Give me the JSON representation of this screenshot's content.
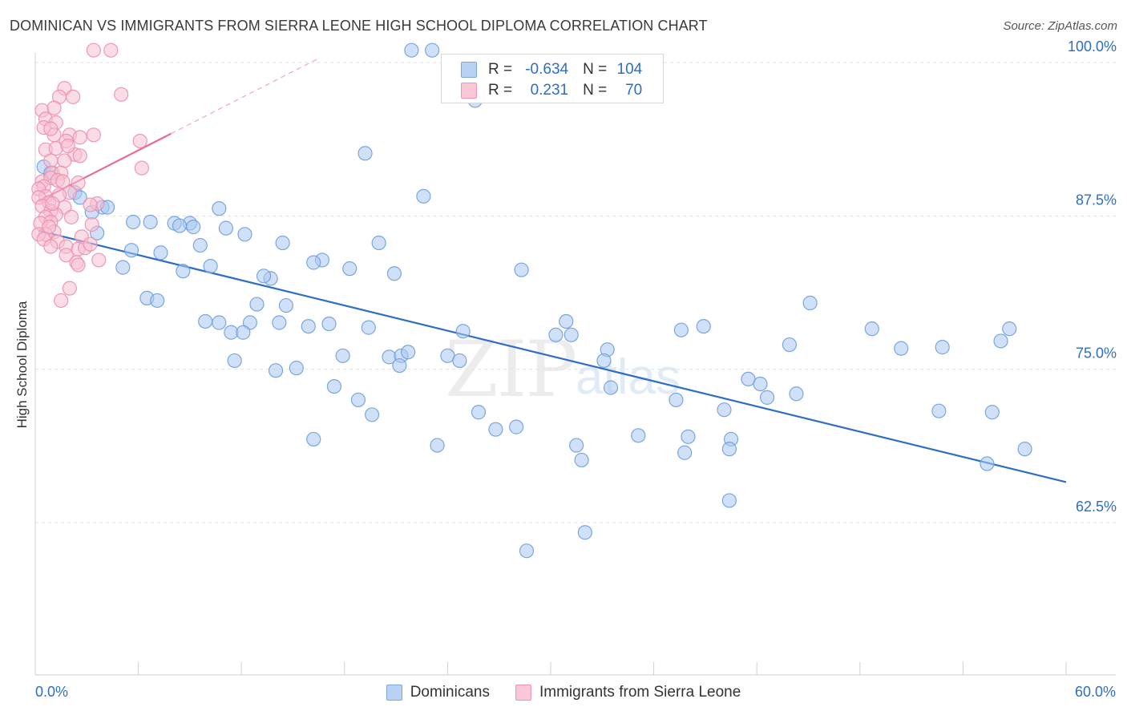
{
  "title": "DOMINICAN VS IMMIGRANTS FROM SIERRA LEONE HIGH SCHOOL DIPLOMA CORRELATION CHART",
  "source": "Source: ZipAtlas.com",
  "watermark": {
    "zip": "ZIP",
    "atlas": "atlas"
  },
  "legend_top": {
    "rows": [
      {
        "r_label": "R = ",
        "r_value": "-0.634",
        "n_label": "N = ",
        "n_value": "104"
      },
      {
        "r_label": "R = ",
        "r_value": "0.231",
        "n_label": "N = ",
        "n_value": "70"
      }
    ]
  },
  "colors": {
    "blue": "#2e6dc6",
    "blue_fill": "#b9d2f4",
    "pink": "#e8689a",
    "pink_fill": "#f9c7d6"
  },
  "chart_data": {
    "type": "scatter",
    "title": "DOMINICAN VS IMMIGRANTS FROM SIERRA LEONE HIGH SCHOOL DIPLOMA CORRELATION CHART",
    "xlabel": "",
    "ylabel": "High School Diploma",
    "xlim": [
      0,
      60
    ],
    "ylim": [
      50,
      102
    ],
    "x_tick_labels": [
      "0.0%",
      "60.0%"
    ],
    "y_ticks": [
      62.5,
      75.0,
      87.5,
      100.0
    ],
    "y_tick_labels": [
      "62.5%",
      "75.0%",
      "87.5%",
      "100.0%"
    ],
    "grid": true,
    "legend_position": "bottom",
    "series": [
      {
        "name": "Dominicans",
        "color": "#2e6dc6",
        "trend": [
          [
            0.2,
            86.3
          ],
          [
            60,
            65.8
          ]
        ],
        "points": [
          [
            21.9,
            101
          ],
          [
            23.1,
            101
          ],
          [
            25.6,
            96.9
          ],
          [
            19.2,
            92.6
          ],
          [
            22.6,
            89.1
          ],
          [
            0.5,
            91.5
          ],
          [
            0.9,
            91
          ],
          [
            2.3,
            89.4
          ],
          [
            2.6,
            89
          ],
          [
            3.9,
            88.2
          ],
          [
            4.2,
            88.2
          ],
          [
            10.7,
            88.1
          ],
          [
            3.3,
            87.8
          ],
          [
            5.7,
            87
          ],
          [
            6.7,
            87
          ],
          [
            8.1,
            86.9
          ],
          [
            9.0,
            86.9
          ],
          [
            8.4,
            86.7
          ],
          [
            9.2,
            86.6
          ],
          [
            11.1,
            86.5
          ],
          [
            3.6,
            86.1
          ],
          [
            12.2,
            86
          ],
          [
            14.4,
            85.3
          ],
          [
            9.6,
            85.1
          ],
          [
            5.6,
            84.7
          ],
          [
            7.3,
            84.5
          ],
          [
            16.7,
            83.9
          ],
          [
            16.2,
            83.7
          ],
          [
            18.3,
            83.2
          ],
          [
            10.2,
            83.4
          ],
          [
            8.6,
            83
          ],
          [
            5.1,
            83.3
          ],
          [
            20.9,
            82.8
          ],
          [
            28.3,
            83.1
          ],
          [
            13.7,
            82.4
          ],
          [
            13.3,
            82.6
          ],
          [
            6.5,
            80.8
          ],
          [
            7.1,
            80.6
          ],
          [
            12.9,
            80.3
          ],
          [
            14.6,
            80.2
          ],
          [
            9.9,
            78.9
          ],
          [
            10.7,
            78.8
          ],
          [
            12.5,
            78.8
          ],
          [
            14.2,
            78.8
          ],
          [
            15.9,
            78.5
          ],
          [
            17.1,
            78.7
          ],
          [
            19.4,
            78.4
          ],
          [
            11.4,
            78
          ],
          [
            12.1,
            78
          ],
          [
            24.9,
            78.1
          ],
          [
            30.9,
            78.9
          ],
          [
            31.2,
            77.8
          ],
          [
            30.3,
            77.8
          ],
          [
            37.6,
            78.2
          ],
          [
            38.9,
            78.5
          ],
          [
            48.7,
            78.3
          ],
          [
            43.9,
            77
          ],
          [
            33.3,
            76.6
          ],
          [
            50.4,
            76.7
          ],
          [
            17.9,
            76.1
          ],
          [
            20.6,
            76
          ],
          [
            21.3,
            76.1
          ],
          [
            21.7,
            76.4
          ],
          [
            24.0,
            76.1
          ],
          [
            33.1,
            75.7
          ],
          [
            21.2,
            75.3
          ],
          [
            24.7,
            75.7
          ],
          [
            15.2,
            75.1
          ],
          [
            14.0,
            74.9
          ],
          [
            11.6,
            75.7
          ],
          [
            41.5,
            74.2
          ],
          [
            42.2,
            73.8
          ],
          [
            33.5,
            73.5
          ],
          [
            17.4,
            73.6
          ],
          [
            18.8,
            72.5
          ],
          [
            44.3,
            73
          ],
          [
            37.3,
            72.5
          ],
          [
            40.1,
            71.7
          ],
          [
            42.6,
            72.7
          ],
          [
            52.6,
            71.6
          ],
          [
            55.7,
            71.5
          ],
          [
            19.6,
            71.3
          ],
          [
            25.8,
            71.5
          ],
          [
            28.0,
            70.3
          ],
          [
            26.8,
            70.1
          ],
          [
            35.1,
            69.6
          ],
          [
            38.0,
            69.5
          ],
          [
            40.5,
            69.3
          ],
          [
            40.4,
            68.5
          ],
          [
            37.8,
            68.2
          ],
          [
            31.5,
            68.8
          ],
          [
            16.2,
            69.3
          ],
          [
            23.4,
            68.8
          ],
          [
            31.8,
            67.6
          ],
          [
            55.4,
            67.3
          ],
          [
            57.6,
            68.5
          ],
          [
            40.4,
            64.3
          ],
          [
            32.0,
            61.7
          ],
          [
            28.6,
            60.2
          ],
          [
            52.8,
            76.8
          ],
          [
            56.2,
            77.3
          ],
          [
            45.1,
            80.4
          ],
          [
            56.7,
            78.3
          ],
          [
            20.0,
            85.3
          ]
        ]
      },
      {
        "name": "Immigrants from Sierra Leone",
        "color": "#e8689a",
        "trend": [
          [
            0.2,
            88.7
          ],
          [
            7.9,
            94.2
          ]
        ],
        "points": [
          [
            3.4,
            101
          ],
          [
            4.4,
            101
          ],
          [
            1.7,
            97.9
          ],
          [
            1.4,
            97.2
          ],
          [
            2.2,
            97.2
          ],
          [
            5.0,
            97.4
          ],
          [
            0.4,
            96.1
          ],
          [
            1.1,
            96.3
          ],
          [
            0.6,
            95.4
          ],
          [
            1.2,
            95.1
          ],
          [
            0.5,
            94.7
          ],
          [
            2.0,
            94.1
          ],
          [
            3.4,
            94.1
          ],
          [
            1.1,
            94.1
          ],
          [
            2.6,
            93.9
          ],
          [
            1.8,
            93.6
          ],
          [
            6.1,
            93.6
          ],
          [
            0.6,
            92.9
          ],
          [
            1.2,
            93
          ],
          [
            2.3,
            92.5
          ],
          [
            0.9,
            92
          ],
          [
            1.7,
            92
          ],
          [
            2.6,
            92.4
          ],
          [
            6.2,
            91.4
          ],
          [
            1.0,
            91
          ],
          [
            1.5,
            91
          ],
          [
            0.4,
            90.3
          ],
          [
            0.9,
            90.6
          ],
          [
            1.3,
            90.4
          ],
          [
            1.6,
            90.3
          ],
          [
            0.5,
            89.9
          ],
          [
            0.2,
            89.7
          ],
          [
            0.6,
            89.1
          ],
          [
            2.0,
            89.4
          ],
          [
            0.2,
            89
          ],
          [
            0.8,
            88.6
          ],
          [
            3.6,
            88.5
          ],
          [
            3.2,
            88.4
          ],
          [
            0.4,
            88.3
          ],
          [
            1.7,
            88.2
          ],
          [
            0.9,
            87.9
          ],
          [
            1.2,
            87.6
          ],
          [
            0.6,
            87.4
          ],
          [
            2.1,
            87.4
          ],
          [
            0.9,
            87
          ],
          [
            0.3,
            86.9
          ],
          [
            3.3,
            86.8
          ],
          [
            1.1,
            86.2
          ],
          [
            0.6,
            86
          ],
          [
            0.2,
            86
          ],
          [
            2.7,
            85.8
          ],
          [
            0.5,
            85.6
          ],
          [
            1.3,
            85.4
          ],
          [
            0.9,
            85
          ],
          [
            1.8,
            85
          ],
          [
            2.5,
            84.8
          ],
          [
            2.9,
            84.9
          ],
          [
            1.8,
            84.3
          ],
          [
            3.7,
            83.9
          ],
          [
            2.4,
            83.7
          ],
          [
            2.5,
            83.5
          ],
          [
            2.0,
            81.6
          ],
          [
            1.5,
            80.6
          ],
          [
            2.5,
            90.2
          ],
          [
            1.9,
            93.2
          ],
          [
            0.9,
            94.6
          ],
          [
            3.2,
            85.2
          ],
          [
            0.8,
            86.6
          ],
          [
            1.4,
            89.2
          ],
          [
            1.0,
            88.5
          ]
        ]
      }
    ]
  },
  "legend_bottom": [
    {
      "label": "Dominicans"
    },
    {
      "label": "Immigrants from Sierra Leone"
    }
  ]
}
